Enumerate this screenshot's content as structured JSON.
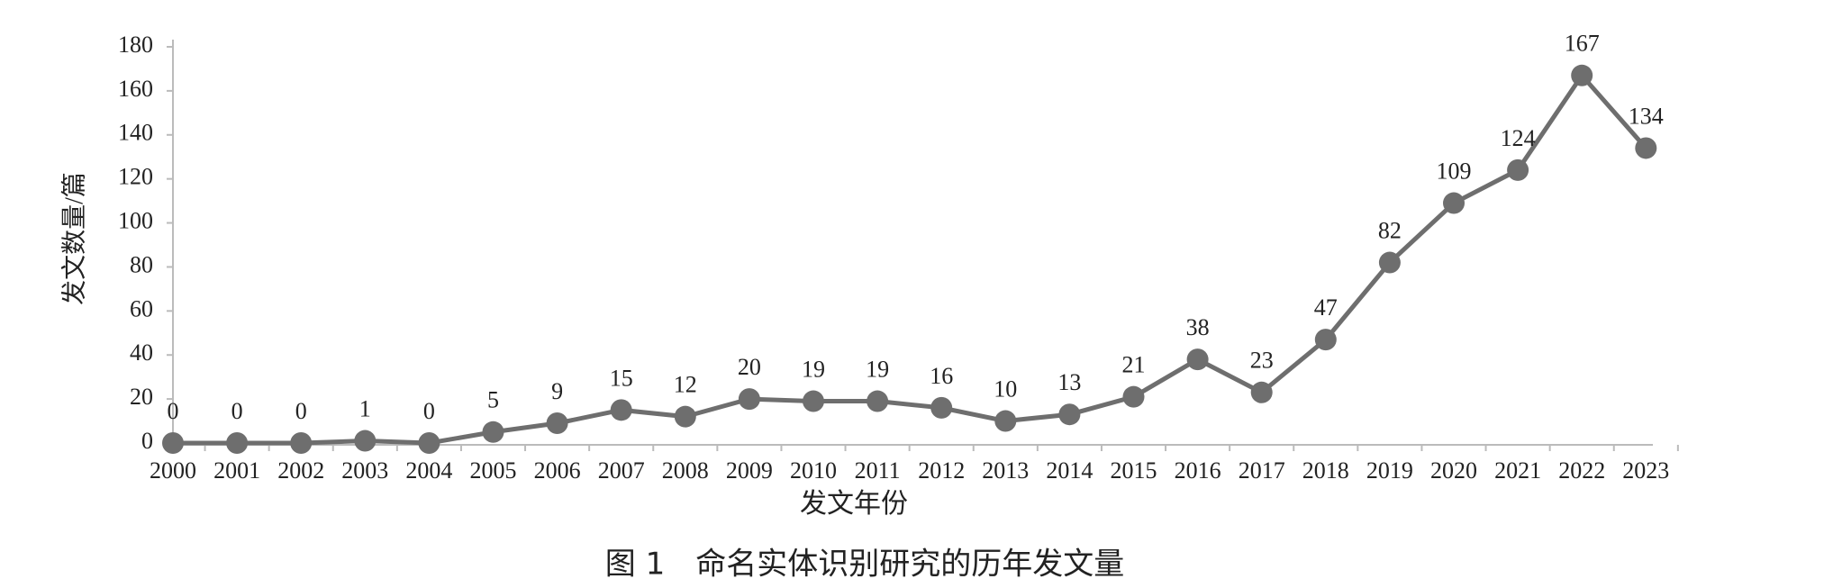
{
  "chart_data": {
    "type": "line",
    "title": "图 1　命名实体识别研究的历年发文量",
    "x_label": "发文年份",
    "y_label": "发文数量/篇",
    "categories": [
      "2000",
      "2001",
      "2002",
      "2003",
      "2004",
      "2005",
      "2006",
      "2007",
      "2008",
      "2009",
      "2010",
      "2011",
      "2012",
      "2013",
      "2014",
      "2015",
      "2016",
      "2017",
      "2018",
      "2019",
      "2020",
      "2021",
      "2022",
      "2023"
    ],
    "series": [
      {
        "name": "发文数量",
        "color": "#6e6e6e",
        "values": [
          0,
          0,
          0,
          1,
          0,
          5,
          9,
          15,
          12,
          20,
          19,
          19,
          16,
          10,
          13,
          21,
          38,
          23,
          47,
          82,
          109,
          124,
          167,
          134
        ]
      }
    ],
    "ylim": [
      0,
      180
    ],
    "yticks": [
      0,
      20,
      40,
      60,
      80,
      100,
      120,
      140,
      160,
      180
    ],
    "grid": false
  }
}
